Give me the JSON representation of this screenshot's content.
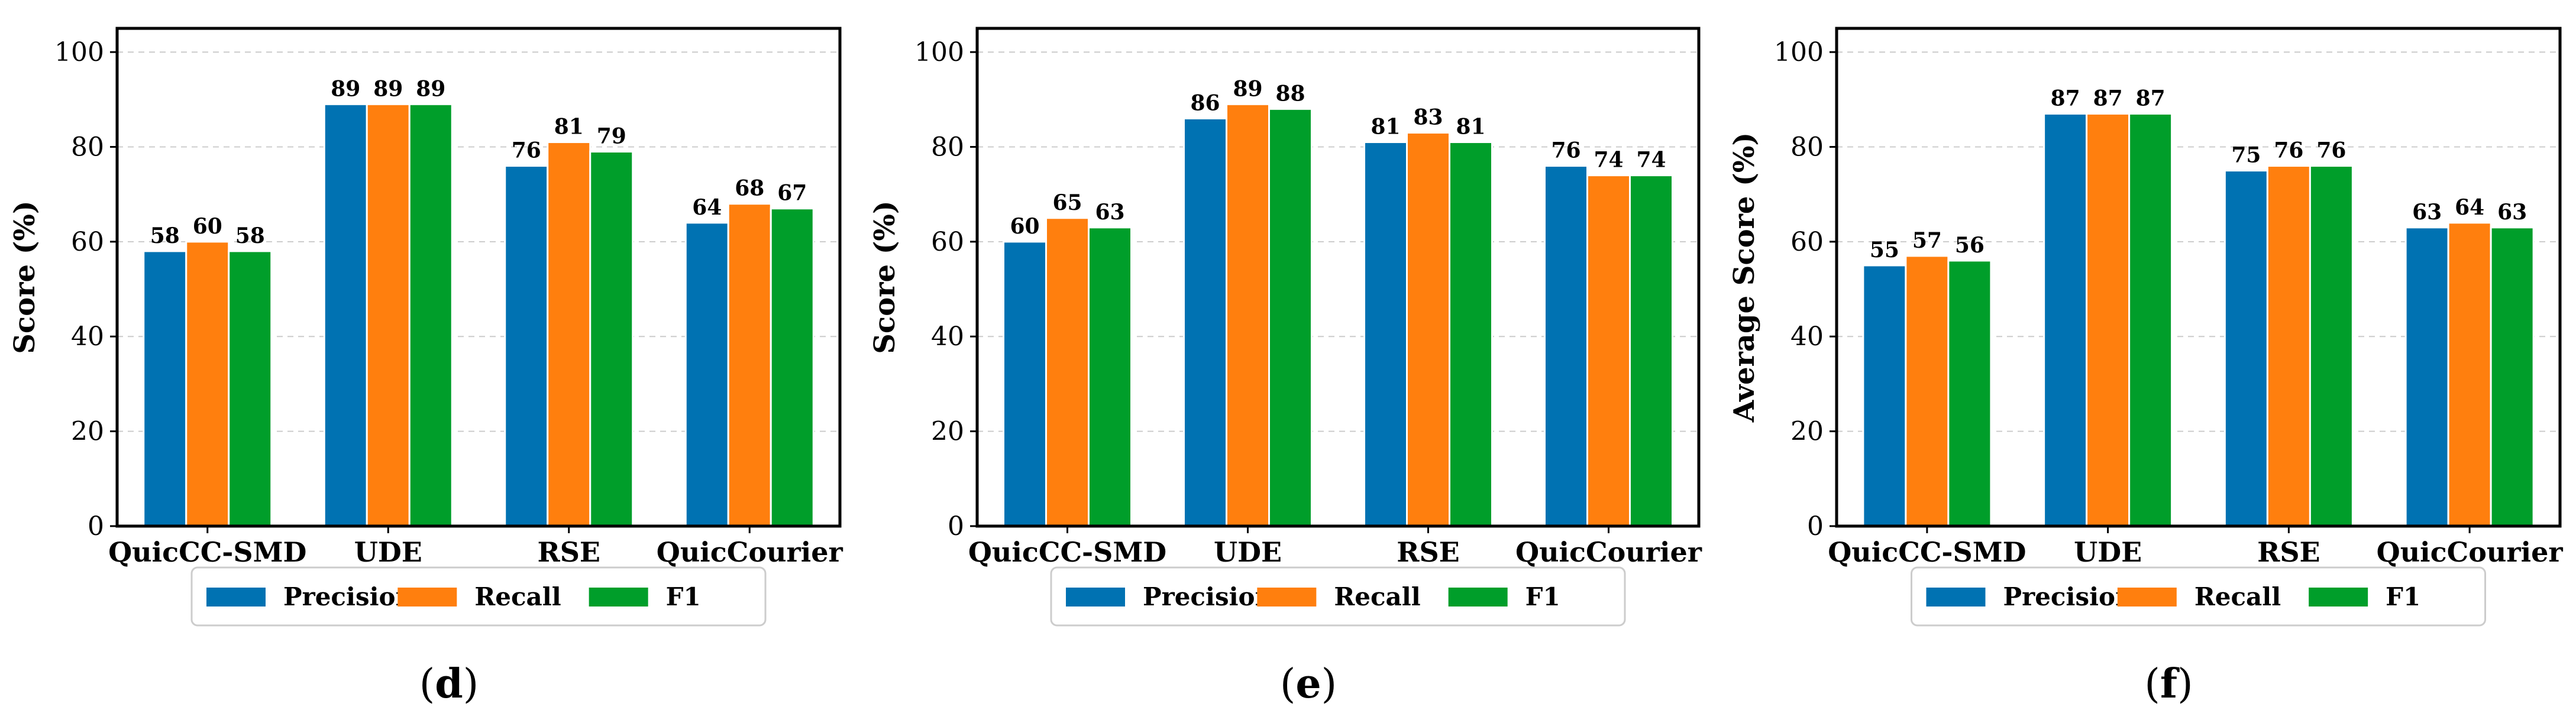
{
  "colors": {
    "Precision": "#0072b2",
    "Recall": "#ff7f0e",
    "F1": "#009e2a",
    "grid": "#cccccc",
    "axis": "#000000"
  },
  "chart_data": [
    {
      "type": "bar",
      "panel": "d",
      "panel_label": "(d)",
      "categories": [
        "QuicCC-SMD",
        "UDE",
        "RSE",
        "QuicCourier"
      ],
      "series": [
        {
          "name": "Precision",
          "values": [
            58,
            89,
            76,
            64
          ]
        },
        {
          "name": "Recall",
          "values": [
            60,
            89,
            81,
            68
          ]
        },
        {
          "name": "F1",
          "values": [
            58,
            89,
            79,
            67
          ]
        }
      ],
      "ylabel": "Score (%)",
      "xlabel": "",
      "ylim": [
        0,
        105
      ],
      "yticks": [
        0,
        20,
        40,
        60,
        80,
        100
      ],
      "grid": true,
      "legend": "bottom-center"
    },
    {
      "type": "bar",
      "panel": "e",
      "panel_label": "(e)",
      "categories": [
        "QuicCC-SMD",
        "UDE",
        "RSE",
        "QuicCourier"
      ],
      "series": [
        {
          "name": "Precision",
          "values": [
            60,
            86,
            81,
            76
          ]
        },
        {
          "name": "Recall",
          "values": [
            65,
            89,
            83,
            74
          ]
        },
        {
          "name": "F1",
          "values": [
            63,
            88,
            81,
            74
          ]
        }
      ],
      "ylabel": "Score (%)",
      "xlabel": "",
      "ylim": [
        0,
        105
      ],
      "yticks": [
        0,
        20,
        40,
        60,
        80,
        100
      ],
      "grid": true,
      "legend": "bottom-center"
    },
    {
      "type": "bar",
      "panel": "f",
      "panel_label": "(f)",
      "categories": [
        "QuicCC-SMD",
        "UDE",
        "RSE",
        "QuicCourier"
      ],
      "series": [
        {
          "name": "Precision",
          "values": [
            55,
            87,
            75,
            63
          ]
        },
        {
          "name": "Recall",
          "values": [
            57,
            87,
            76,
            64
          ]
        },
        {
          "name": "F1",
          "values": [
            56,
            87,
            76,
            63
          ]
        }
      ],
      "ylabel": "Average Score (%)",
      "xlabel": "",
      "ylim": [
        0,
        105
      ],
      "yticks": [
        0,
        20,
        40,
        60,
        80,
        100
      ],
      "grid": true,
      "legend": "bottom-center"
    }
  ]
}
